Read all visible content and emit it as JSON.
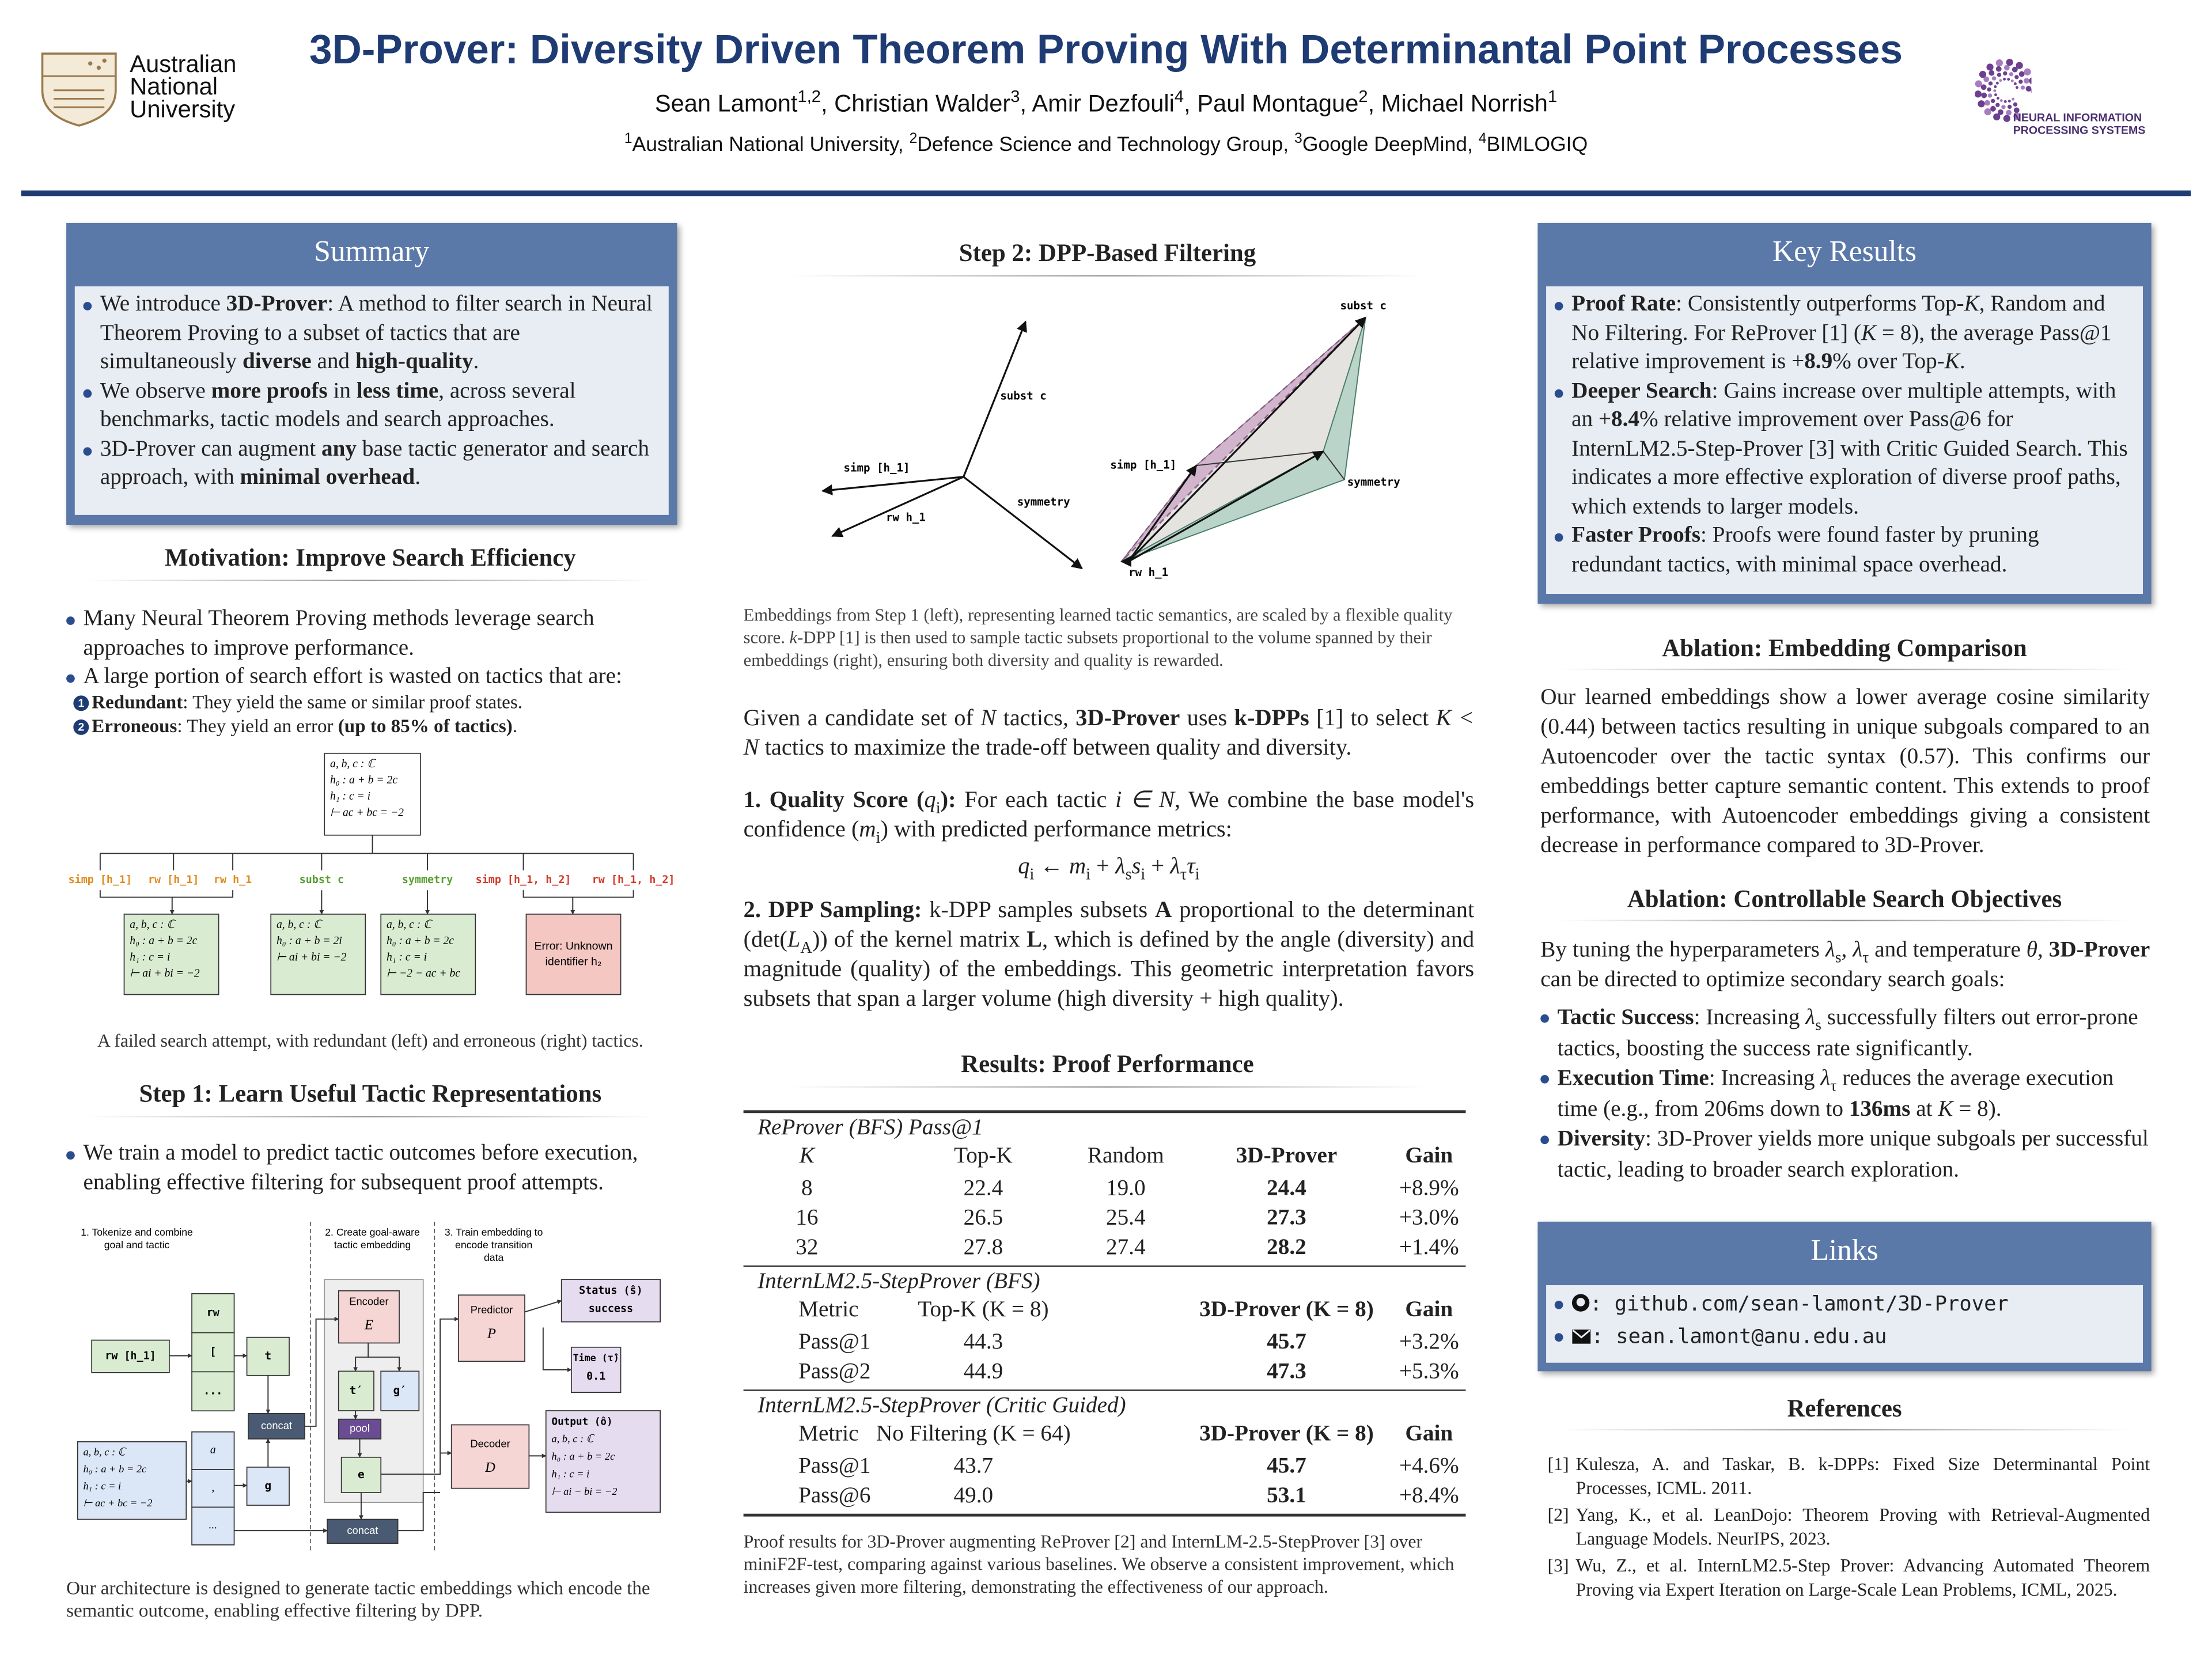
{
  "header": {
    "title": "3D-Prover: Diversity Driven Theorem Proving With Determinantal Point Processes",
    "authors": [
      "Sean Lamont",
      {
        "sup": "1,2"
      },
      ", Christian Walder",
      {
        "sup": "3"
      },
      ", Amir Dezfouli",
      {
        "sup": "4"
      },
      ", Paul Montague",
      {
        "sup": "2"
      },
      ", Michael Norrish",
      {
        "sup": "1"
      }
    ],
    "affiliations": [
      {
        "sup": "1"
      },
      "Australian National University, ",
      {
        "sup": "2"
      },
      "Defence Science and Technology Group, ",
      {
        "sup": "3"
      },
      "Google DeepMind, ",
      {
        "sup": "4"
      },
      "BIMLOGIQ"
    ],
    "anu_logo": [
      "Australian",
      "National",
      "University"
    ],
    "neurips_logo": [
      "NEURAL INFORMATION",
      "PROCESSING SYSTEMS"
    ]
  },
  "summary": {
    "title": "Summary",
    "items": [
      [
        "We introduce ",
        {
          "b": "3D-Prover"
        },
        ": A method to filter search in Neural Theorem Proving to a subset of tactics that are simultaneously ",
        {
          "b": "diverse"
        },
        " and ",
        {
          "b": "high-quality"
        },
        "."
      ],
      [
        "We observe ",
        {
          "b": "more proofs"
        },
        " in ",
        {
          "b": "less time"
        },
        ", across several benchmarks, tactic models and search approaches."
      ],
      [
        "3D-Prover can augment ",
        {
          "b": "any"
        },
        " base tactic generator and search approach, with ",
        {
          "b": "minimal overhead"
        },
        "."
      ]
    ]
  },
  "motivation": {
    "title": "Motivation: Improve Search Efficiency",
    "items": [
      [
        "Many Neural Theorem Proving methods leverage search approaches to improve performance."
      ],
      [
        "A large portion of search effort is wasted on tactics that are:"
      ]
    ],
    "sub_items": [
      {
        "marker": "1",
        "text": [
          {
            "b": "Redundant"
          },
          ": They yield the same or similar proof states."
        ]
      },
      {
        "marker": "2",
        "text": [
          {
            "b": "Erroneous"
          },
          ": They yield an error ",
          {
            "b": "(up to 85% of tactics)"
          },
          "."
        ]
      }
    ],
    "figure": {
      "root": [
        "a, b, c : ℂ",
        "h₀ : a + b = 2c",
        "h₁ : c = i",
        "⊢ ac + bc = −2"
      ],
      "tactics": [
        "simp [h_1]",
        "rw [h_1]",
        "rw h_1",
        "subst c",
        "symmetry",
        "simp [h_1, h_2]",
        "rw [h_1, h_2]"
      ],
      "tactic_colors": [
        "#e08a1e",
        "#e08a1e",
        "#e08a1e",
        "#5a9e2f",
        "#5a9e2f",
        "#d43a2a",
        "#d43a2a"
      ],
      "children": [
        [
          "a, b, c : ℂ",
          "h₀ : a + b = 2c",
          "h₁ : c = i",
          "⊢ ai + bi = −2"
        ],
        [
          "a, b, c : ℂ",
          "h₀ : a + b = 2i",
          "⊢ ai + bi = −2"
        ],
        [
          "a, b, c : ℂ",
          "h₀ : a + b = 2c",
          "h₁ : c = i",
          "⊢ −2 − ac + bc"
        ],
        [
          "Error: Unknown",
          "identifier h₂"
        ]
      ]
    },
    "caption": "A failed search attempt, with redundant (left) and erroneous (right) tactics."
  },
  "step1": {
    "title": "Step 1: Learn Useful Tactic Representations",
    "items": [
      [
        "We train a model to predict tactic outcomes before execution, enabling effective filtering for subsequent proof attempts."
      ]
    ],
    "figure": {
      "stages": [
        [
          "1. Tokenize and combine",
          "goal and tactic"
        ],
        [
          "2. Create goal-aware",
          "tactic embedding"
        ],
        [
          "3. Train embedding to",
          "encode transition",
          "data"
        ]
      ],
      "tactic": "rw [h_1]",
      "tactic_tokens": [
        "rw",
        "[",
        "..."
      ],
      "t": "t",
      "goal": [
        "a, b, c : ℂ",
        "h₀ : a + b = 2c",
        "h₁ : c = i",
        "⊢ ac + bc = −2"
      ],
      "goal_tokens": [
        "a",
        ",",
        "..."
      ],
      "g": "g",
      "concats": [
        "concat",
        "concat"
      ],
      "encoder": [
        "Encoder",
        "E"
      ],
      "t_prime": "t′",
      "g_prime": "g′",
      "pool": "pool",
      "e": "e",
      "predictor": [
        "Predictor",
        "P"
      ],
      "status": [
        "Status (ŝ)",
        "success"
      ],
      "time": [
        "Time (τ̂)",
        "0.1"
      ],
      "decoder": [
        "Decoder",
        "D"
      ],
      "output": [
        "Output (ô)",
        "a, b, c : ℂ",
        "h₀ : a + b = 2c",
        "h₁ : c = i",
        "⊢ ai − bi = −2"
      ]
    },
    "caption": "Our architecture is designed to generate tactic embeddings which encode the semantic outcome, enabling effective filtering by DPP."
  },
  "step2": {
    "title": "Step 2: DPP-Based Filtering",
    "figure": {
      "left_labels": [
        "subst c",
        "simp [h_1]",
        "rw h_1",
        "symmetry"
      ],
      "right_labels": [
        "subst c",
        "simp [h_1]",
        "symmetry",
        "rw h_1"
      ]
    },
    "caption": [
      "Embeddings from Step 1 (left), representing learned tactic semantics, are scaled by a flexible quality score. ",
      {
        "i": "k"
      },
      "-DPP [1] is then used to sample tactic subsets proportional to the volume spanned by their embeddings (right), ensuring both diversity and quality is rewarded."
    ],
    "intro": [
      "Given a candidate set of ",
      {
        "i": "N"
      },
      " tactics, ",
      {
        "b": "3D-Prover"
      },
      " uses ",
      {
        "b": "k-DPPs"
      },
      " [1] to select ",
      {
        "i": "K < N"
      },
      " tactics to maximize the trade-off between quality and diversity."
    ],
    "point1": [
      {
        "b": "1.  Quality Score ("
      },
      {
        "i": "q"
      },
      {
        "sub": "i"
      },
      {
        "b": "):"
      },
      " For each tactic ",
      {
        "i": "i ∈ N"
      },
      ", We combine the base model's confidence (",
      {
        "i": "m"
      },
      {
        "sub": "i"
      },
      ") with predicted performance metrics:"
    ],
    "equation": [
      {
        "i": "q"
      },
      {
        "sub": "i"
      },
      " ← ",
      {
        "i": "m"
      },
      {
        "sub": "i"
      },
      " + ",
      {
        "i": "λ"
      },
      {
        "sub": "s"
      },
      {
        "i": "s"
      },
      {
        "sub": "i"
      },
      " + ",
      {
        "i": "λ"
      },
      {
        "sub": "τ"
      },
      {
        "i": "τ"
      },
      {
        "sub": "i"
      }
    ],
    "point2": [
      {
        "b": "2.  DPP Sampling:"
      },
      " k-DPP samples subsets ",
      {
        "b": "A"
      },
      " proportional to the determinant (det(",
      {
        "i": "L"
      },
      {
        "sub": "A"
      },
      ")) of the kernel matrix ",
      {
        "b": "L"
      },
      ", which is defined by the angle (diversity) and magnitude (quality) of the embeddings. This geometric interpretation favors subsets that span a larger volume (high diversity + high quality)."
    ]
  },
  "results": {
    "title": "Results: Proof Performance",
    "groups": [
      {
        "name": "ReProver (BFS) Pass@1",
        "header": [
          "K",
          "Top-K",
          "Random",
          "3D-Prover",
          "Gain"
        ],
        "rows": [
          [
            "8",
            "22.4",
            "19.0",
            "24.4",
            "+8.9%"
          ],
          [
            "16",
            "26.5",
            "25.4",
            "27.3",
            "+3.0%"
          ],
          [
            "32",
            "27.8",
            "27.4",
            "28.2",
            "+1.4%"
          ]
        ]
      },
      {
        "name": "InternLM2.5-StepProver (BFS)",
        "header": [
          "Metric",
          "Top-K (K = 8)",
          "3D-Prover (K = 8)",
          "Gain"
        ],
        "rows": [
          [
            "Pass@1",
            "44.3",
            "45.7",
            "+3.2%"
          ],
          [
            "Pass@2",
            "44.9",
            "47.3",
            "+5.3%"
          ]
        ]
      },
      {
        "name": "InternLM2.5-StepProver (Critic Guided)",
        "header": [
          "Metric",
          "No Filtering (K = 64)",
          "3D-Prover (K = 8)",
          "Gain"
        ],
        "rows": [
          [
            "Pass@1",
            "43.7",
            "45.7",
            "+4.6%"
          ],
          [
            "Pass@6",
            "49.0",
            "53.1",
            "+8.4%"
          ]
        ]
      }
    ],
    "caption": "Proof results for 3D-Prover augmenting ReProver [2] and InternLM-2.5-StepProver [3] over miniF2F-test, comparing against various baselines. We observe a consistent improvement, which increases given more filtering, demonstrating the effectiveness of our approach."
  },
  "key_results": {
    "title": "Key Results",
    "items": [
      [
        {
          "b": "Proof Rate"
        },
        ": Consistently outperforms Top-",
        {
          "i": "K"
        },
        ", Random and No Filtering. For ReProver [1] (",
        {
          "i": "K"
        },
        " = 8), the average Pass@1 relative improvement is +",
        {
          "b": "8.9"
        },
        "% over Top-",
        {
          "i": "K"
        },
        "."
      ],
      [
        {
          "b": "Deeper Search"
        },
        ": Gains increase over multiple attempts, with an +",
        {
          "b": "8.4"
        },
        "% relative improvement over Pass@6 for InternLM2.5-Step-Prover [3] with Critic Guided Search. This indicates a more effective exploration of diverse proof paths, which extends to larger models."
      ],
      [
        {
          "b": "Faster Proofs"
        },
        ": Proofs were found faster by pruning redundant tactics, with minimal space overhead."
      ]
    ]
  },
  "ablation_embedding": {
    "title": "Ablation: Embedding Comparison",
    "text": "Our learned embeddings show a lower average cosine similarity (0.44) between tactics resulting in unique subgoals compared to an Autoencoder over the tactic syntax (0.57). This confirms our embeddings better capture semantic content.  This extends to proof performance, with Autoencoder embeddings giving a consistent decrease in performance compared to 3D-Prover."
  },
  "ablation_search": {
    "title": "Ablation: Controllable Search Objectives",
    "intro": [
      "By tuning the hyperparameters ",
      {
        "i": "λ"
      },
      {
        "sub": "s"
      },
      ", ",
      {
        "i": "λ"
      },
      {
        "sub": "τ"
      },
      " and temperature ",
      {
        "i": "θ"
      },
      ", ",
      {
        "b": "3D-Prover"
      },
      " can be directed to optimize secondary search goals:"
    ],
    "items": [
      [
        {
          "b": "Tactic Success"
        },
        ": Increasing ",
        {
          "i": "λ"
        },
        {
          "sub": "s"
        },
        " successfully filters out error-prone tactics, boosting the success rate significantly."
      ],
      [
        {
          "b": "Execution Time"
        },
        ": Increasing ",
        {
          "i": "λ"
        },
        {
          "sub": "τ"
        },
        " reduces the average execution time (e.g., from 206ms down to ",
        {
          "b": "136ms"
        },
        " at ",
        {
          "i": "K"
        },
        " = 8)."
      ],
      [
        {
          "b": "Diversity"
        },
        ": 3D-Prover yields more unique subgoals per successful tactic, leading to broader search exploration."
      ]
    ]
  },
  "links": {
    "title": "Links",
    "items": [
      ": github.com/sean-lamont/3D-Prover",
      ": sean.lamont@anu.edu.au"
    ]
  },
  "references": {
    "title": "References",
    "items": [
      {
        "label": "[1]",
        "text": "Kulesza, A. and Taskar, B. k-DPPs: Fixed Size Determinantal Point Processes, ICML. 2011."
      },
      {
        "label": "[2]",
        "text": "Yang, K., et al. LeanDojo: Theorem Proving with Retrieval-Augmented Language Models. NeurIPS, 2023."
      },
      {
        "label": "[3]",
        "text": "Wu, Z., et al. InternLM2.5-Step Prover: Advancing Automated Theorem Proving via Expert Iteration on Large-Scale Lean Problems, ICML, 2025."
      }
    ]
  }
}
